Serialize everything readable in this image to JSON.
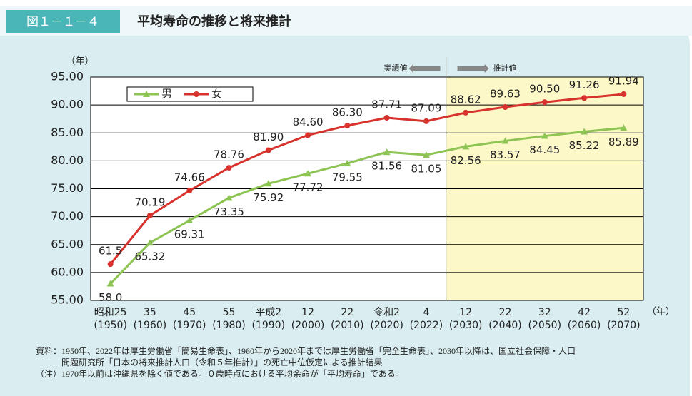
{
  "figure_label": "図１－１－４",
  "chart_data": {
    "type": "line",
    "title": "平均寿命の推移と将来推計",
    "y_unit": "（年）",
    "x_unit": "（年）",
    "categories": [
      "昭和25",
      "35",
      "45",
      "55",
      "平成2",
      "12",
      "22",
      "令和2",
      "4",
      "12",
      "22",
      "32",
      "42",
      "52"
    ],
    "category_years": [
      "(1950)",
      "(1960)",
      "(1970)",
      "(1980)",
      "(1990)",
      "(2000)",
      "(2010)",
      "(2020)",
      "(2022)",
      "(2030)",
      "(2040)",
      "(2050)",
      "(2060)",
      "(2070)"
    ],
    "series": [
      {
        "name": "男",
        "color": "#8dc454",
        "marker": "triangle",
        "values": [
          58.0,
          65.32,
          69.31,
          73.35,
          75.92,
          77.72,
          79.55,
          81.56,
          81.05,
          82.56,
          83.57,
          84.45,
          85.22,
          85.89
        ],
        "value_labels": [
          "58.0",
          "65.32",
          "69.31",
          "73.35",
          "75.92",
          "77.72",
          "79.55",
          "81.56",
          "81.05",
          "82.56",
          "83.57",
          "84.45",
          "85.22",
          "85.89"
        ]
      },
      {
        "name": "女",
        "color": "#d7322c",
        "marker": "circle",
        "values": [
          61.5,
          70.19,
          74.66,
          78.76,
          81.9,
          84.6,
          86.3,
          87.71,
          87.09,
          88.62,
          89.63,
          90.5,
          91.26,
          91.94
        ],
        "value_labels": [
          "61.5",
          "70.19",
          "74.66",
          "78.76",
          "81.90",
          "84.60",
          "86.30",
          "87.71",
          "87.09",
          "88.62",
          "89.63",
          "90.50",
          "91.26",
          "91.94"
        ]
      }
    ],
    "ylim": [
      55,
      95
    ],
    "yticks": [
      {
        "value": 55,
        "label": "55.00"
      },
      {
        "value": 60,
        "label": "60.00"
      },
      {
        "value": 65,
        "label": "65.00"
      },
      {
        "value": 70,
        "label": "70.00"
      },
      {
        "value": 75,
        "label": "75.00"
      },
      {
        "value": 80,
        "label": "80.00"
      },
      {
        "value": 85,
        "label": "85.00"
      },
      {
        "value": 90,
        "label": "90.00"
      },
      {
        "value": 95,
        "label": "95.00"
      }
    ],
    "grid": true,
    "legend": "top-left",
    "actual_label": "実績値",
    "projection_label": "推計値",
    "projection_color": "#fdf8c8"
  },
  "notes": [
    "資料：1950年、2022年は厚生労働省「簡易生命表」、1960年から2020年までは厚生労働省「完全生命表」、2030年以降は、国立社会保障・人口",
    "　　　問題研究所「日本の将来推計人口（令和５年推計）」の死亡中位仮定による推計結果",
    "（注）1970年以前は沖縄県を除く値である。０歳時点における平均余命が「平均寿命」である。"
  ]
}
